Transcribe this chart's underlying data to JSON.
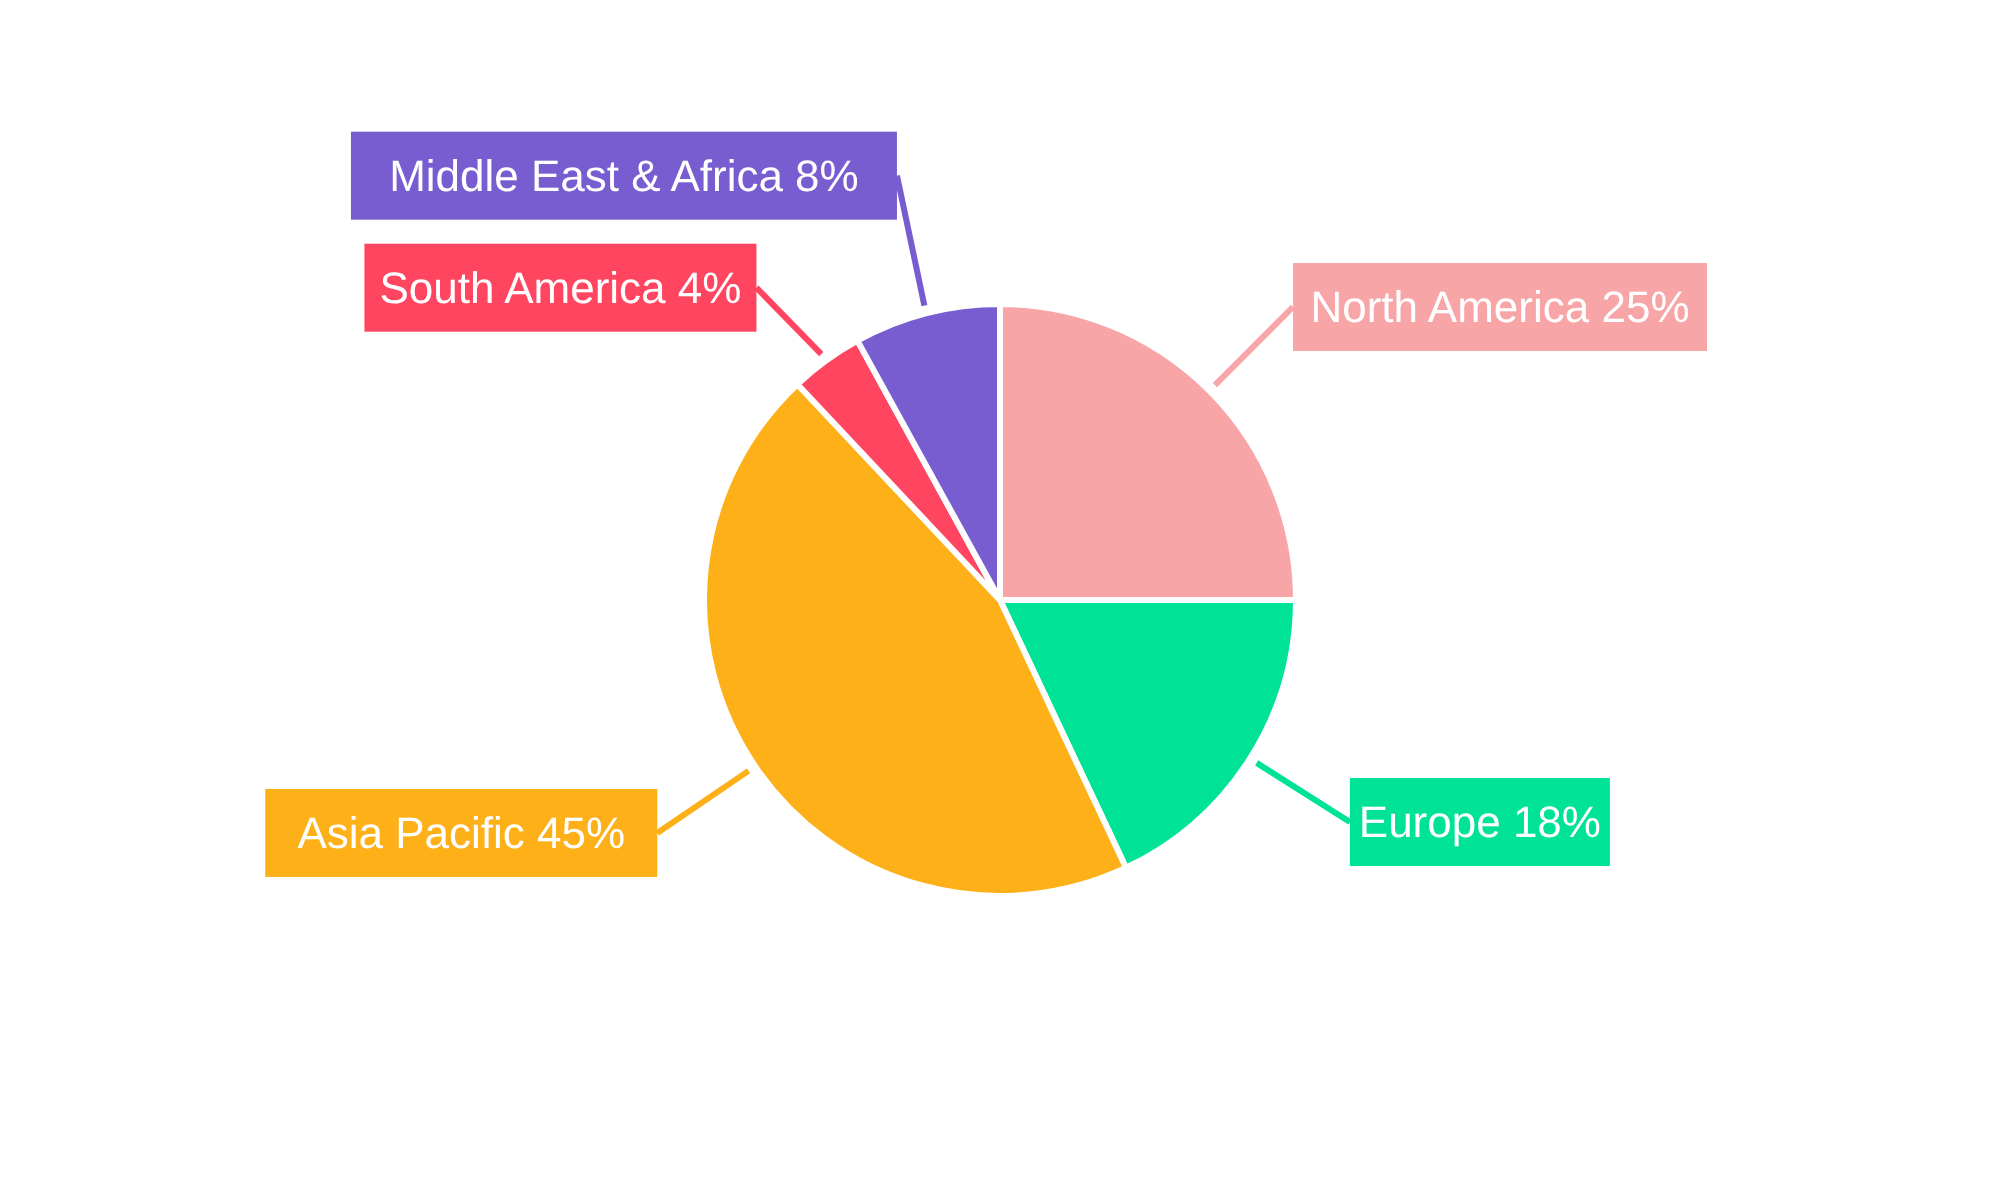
{
  "chart_data": {
    "type": "pie",
    "categories": [
      "North America",
      "Europe",
      "Asia Pacific",
      "South America",
      "Middle East & Africa"
    ],
    "values": [
      25,
      18,
      45,
      4,
      8
    ],
    "value_labels": [
      "25%",
      "18%",
      "45%",
      "4%",
      "8%"
    ],
    "colors": [
      "#f8a5a8",
      "#00e396",
      "#feb019",
      "#ff4560",
      "#775dd0"
    ]
  }
}
